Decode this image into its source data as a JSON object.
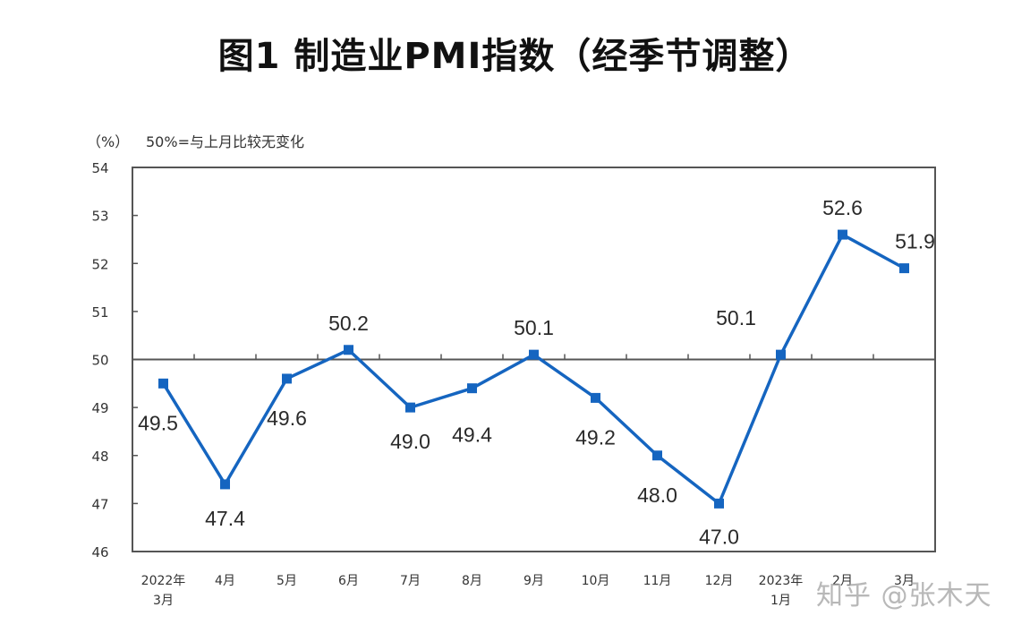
{
  "chart_data": {
    "type": "line",
    "title": "图1 制造业PMI指数（经季节调整）",
    "unit_label": "（%）",
    "annotation": "50%=与上月比较无变化",
    "xlabel": "",
    "ylabel": "%",
    "ylim": [
      46,
      54
    ],
    "yticks": [
      "54",
      "53",
      "52",
      "51",
      "50",
      "49",
      "48",
      "47",
      "46"
    ],
    "reference_line": 50,
    "grid": false,
    "legend": null,
    "categories": [
      [
        "2022年",
        "3月"
      ],
      [
        "4月"
      ],
      [
        "5月"
      ],
      [
        "6月"
      ],
      [
        "7月"
      ],
      [
        "8月"
      ],
      [
        "9月"
      ],
      [
        "10月"
      ],
      [
        "11月"
      ],
      [
        "12月"
      ],
      [
        "2023年",
        "1月"
      ],
      [
        "2月"
      ],
      [
        "3月"
      ]
    ],
    "series": [
      {
        "name": "制造业PMI",
        "color": "#1565c0",
        "values": [
          49.5,
          47.4,
          49.6,
          50.2,
          49.0,
          49.4,
          50.1,
          49.2,
          48.0,
          47.0,
          50.1,
          52.6,
          51.9
        ],
        "labels": [
          "49.5",
          "47.4",
          "49.6",
          "50.2",
          "49.0",
          "49.4",
          "50.1",
          "49.2",
          "48.0",
          "47.0",
          "50.1",
          "52.6",
          "51.9"
        ]
      }
    ]
  },
  "watermark": "知乎 @张木天"
}
